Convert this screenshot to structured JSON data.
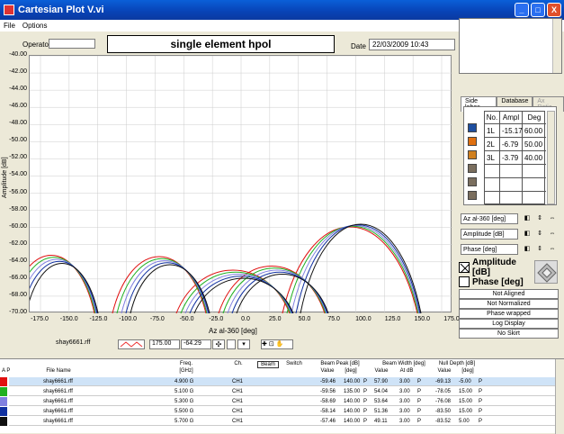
{
  "window": {
    "title": "Cartesian Plot V.vi",
    "btn_min": "_",
    "btn_max": "□",
    "btn_close": "X"
  },
  "menu": {
    "file": "File",
    "options": "Options"
  },
  "operator": {
    "label": "Operator:",
    "value": ""
  },
  "plot_title": "single element hpol",
  "date": {
    "label": "Date",
    "value": "22/03/2009 10:43"
  },
  "axes": {
    "ylabel": "Amplitude [dB]",
    "xlabel": "Az al-360  [deg]",
    "yticks": [
      "-40.00",
      "-42.00",
      "-44.00",
      "-46.00",
      "-48.00",
      "-50.00",
      "-52.00",
      "-54.00",
      "-56.00",
      "-58.00",
      "-60.00",
      "-62.00",
      "-64.00",
      "-66.00",
      "-68.00",
      "-70.00"
    ],
    "xticks": [
      "-175.0",
      "-150.0",
      "-125.0",
      "-100.0",
      "-75.0",
      "-50.0",
      "-25.0",
      "0.0",
      "25.0",
      "50.0",
      "75.0",
      "100.0",
      "125.0",
      "150.0",
      "175.0"
    ]
  },
  "sidelobe_tabs": [
    "Side lobes",
    "Database",
    "Ax Ratio"
  ],
  "sidelobe_table": {
    "headers": [
      "No.",
      "Ampl",
      "Deg"
    ],
    "rows": [
      {
        "no": "1L",
        "ampl": "-15.17",
        "deg": "60.00",
        "color": "#1e4fa0"
      },
      {
        "no": "2L",
        "ampl": "-6.79",
        "deg": "50.00",
        "color": "#e07010"
      },
      {
        "no": "3L",
        "ampl": "-3.79",
        "deg": "40.00",
        "color": "#d08020"
      }
    ]
  },
  "axis_selectors": [
    {
      "label": "Az al-360  [deg]"
    },
    {
      "label": "Amplitude [dB]"
    },
    {
      "label": "Phase [deg]"
    }
  ],
  "toggles": {
    "amplitude": "Amplitude [dB]",
    "phase": "Phase [deg]"
  },
  "status_buttons": [
    "Not Aligned",
    "Not Normalized",
    "Phase wrapped",
    "Log Display",
    "No Skirt"
  ],
  "bottom_toolbar": {
    "file": "shay6661.rff",
    "x_value": "175.00",
    "y_value": "-64.29"
  },
  "table": {
    "col_af": "A P",
    "headers": [
      "File Name",
      "Freq.",
      "Ch.",
      "Beam",
      "Switch",
      "Beam Peak [dB]",
      "Beam Width [deg]",
      "Null Depth [dB]"
    ],
    "subheaders": [
      "[GHz]",
      "Value",
      "[deg]",
      "Value",
      "At dB",
      "Value",
      "[deg]"
    ],
    "rows": [
      {
        "file": "shay6661.rff",
        "freq": "4.900 G",
        "ch": "CH1",
        "bp_val": "-59.46",
        "bp_deg": "140.00",
        "p1": "P",
        "bw_val": "57.90",
        "bw_at": "3.00",
        "p2": "P",
        "nd_val": "-69.13",
        "nd_deg": "-5.00",
        "p3": "P",
        "color": "#e01010",
        "selected": true
      },
      {
        "file": "shay6661.rff",
        "freq": "5.100 G",
        "ch": "CH1",
        "bp_val": "-59.56",
        "bp_deg": "135.00",
        "p1": "P",
        "bw_val": "54.04",
        "bw_at": "3.00",
        "p2": "P",
        "nd_val": "-78.05",
        "nd_deg": "15.00",
        "p3": "P",
        "color": "#20b020",
        "selected": false
      },
      {
        "file": "shay6661.rff",
        "freq": "5.300 G",
        "ch": "CH1",
        "bp_val": "-58.69",
        "bp_deg": "140.00",
        "p1": "P",
        "bw_val": "53.64",
        "bw_at": "3.00",
        "p2": "P",
        "nd_val": "-76.08",
        "nd_deg": "15.00",
        "p3": "P",
        "color": "#8080e0",
        "selected": false
      },
      {
        "file": "shay6661.rff",
        "freq": "5.500 G",
        "ch": "CH1",
        "bp_val": "-58.14",
        "bp_deg": "140.00",
        "p1": "P",
        "bw_val": "51.36",
        "bw_at": "3.00",
        "p2": "P",
        "nd_val": "-83.50",
        "nd_deg": "15.00",
        "p3": "P",
        "color": "#1030a0",
        "selected": false
      },
      {
        "file": "shay6661.rff",
        "freq": "5.700 G",
        "ch": "CH1",
        "bp_val": "-57.46",
        "bp_deg": "140.00",
        "p1": "P",
        "bw_val": "49.11",
        "bw_at": "3.00",
        "p2": "P",
        "nd_val": "-83.52",
        "nd_deg": "5.00",
        "p3": "P",
        "color": "#101010",
        "selected": false
      }
    ]
  }
}
